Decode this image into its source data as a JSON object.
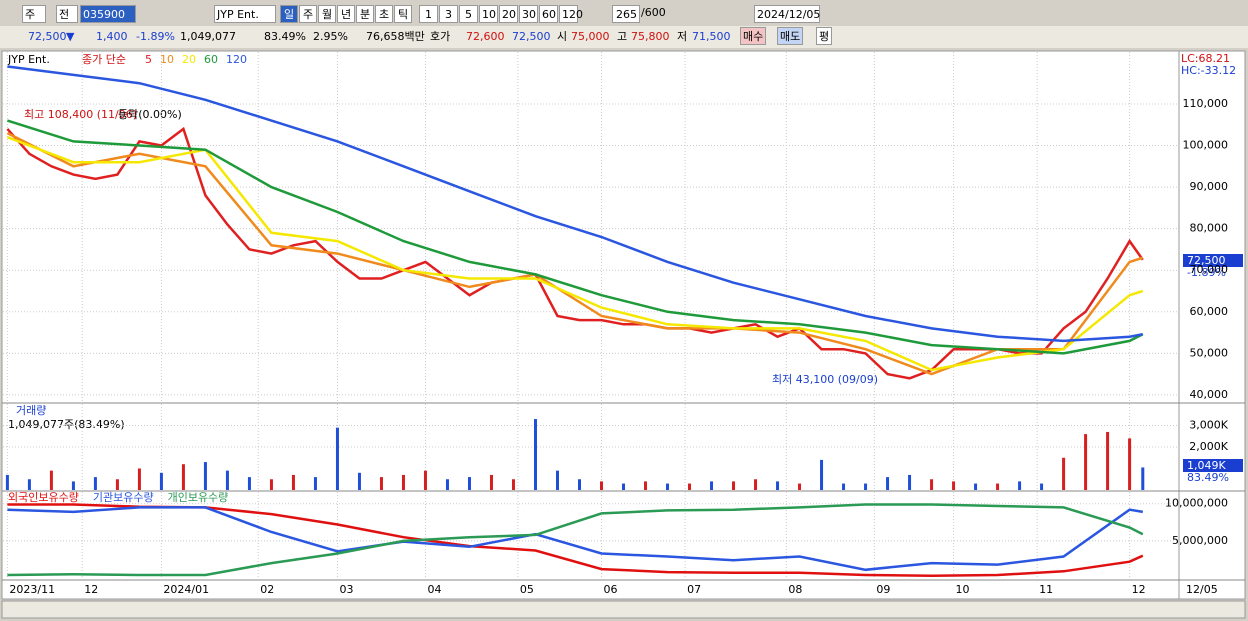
{
  "toolbar": {
    "market": "주",
    "prev": "전",
    "code": "035900",
    "name": "JYP Ent.",
    "periods": [
      "일",
      "주",
      "월",
      "년",
      "분",
      "초",
      "틱"
    ],
    "intervals": [
      "1",
      "3",
      "5",
      "10",
      "20",
      "30",
      "60",
      "120"
    ],
    "count": "265",
    "max": "/600",
    "date": "2024/12/05"
  },
  "quote": {
    "price": "72,500",
    "arrow": "▼",
    "change": "1,400",
    "rate": "-1.89%",
    "volume": "1,049,077",
    "volume_ratio": "83.49%",
    "turnover": "2.95%",
    "amount": "76,658백만",
    "bid_label": "호가",
    "ask": "72,600",
    "bid": "72,500",
    "open_label": "시",
    "open": "75,000",
    "high_label": "고",
    "high": "75,800",
    "low_label": "저",
    "low": "71,500",
    "buy": "매수",
    "sell": "매도",
    "avg": "평"
  },
  "chart_data": [
    {
      "type": "line",
      "name": "JYP Ent.",
      "subtitle": "종가 단순",
      "lc": "LC:68.21",
      "hc": "HC:-33.12",
      "last_label": "72,500",
      "last_rate": "-1.89%",
      "annotations": [
        "최고 108,400 (11/06)",
        "등락(0.00%)",
        "최저 43,100 (09/09)"
      ],
      "ylim": [
        38300,
        122500
      ],
      "yticks": [
        {
          "value": 40000,
          "label": "40,000"
        },
        {
          "value": 50000,
          "label": "50,000"
        },
        {
          "value": 60000,
          "label": "60,000"
        },
        {
          "value": 70000,
          "label": "70,000"
        },
        {
          "value": 80000,
          "label": "80,000"
        },
        {
          "value": 90000,
          "label": "90,000"
        },
        {
          "value": 100000,
          "label": "100,000"
        },
        {
          "value": 110000,
          "label": "110,000"
        }
      ],
      "series": [
        {
          "name": "5",
          "color": "#e02020",
          "x": [
            0,
            5,
            10,
            15,
            20,
            25,
            30,
            35,
            40,
            45,
            50,
            55,
            60,
            65,
            70,
            75,
            80,
            85,
            90,
            95,
            100,
            105,
            110,
            115,
            120,
            125,
            130,
            135,
            140,
            145,
            150,
            155,
            160,
            165,
            170,
            175,
            180,
            185,
            190,
            195,
            200,
            205,
            210,
            215,
            220,
            225,
            230,
            235,
            240,
            245,
            250,
            255,
            258
          ],
          "values": [
            104000,
            98000,
            95000,
            93000,
            92000,
            93000,
            101000,
            100000,
            104000,
            88000,
            81000,
            75000,
            74000,
            76000,
            77000,
            72000,
            68000,
            68000,
            70000,
            72000,
            68000,
            64000,
            67000,
            68000,
            69000,
            59000,
            58000,
            58000,
            57000,
            57000,
            56000,
            56000,
            55000,
            56000,
            57000,
            54000,
            56000,
            51000,
            51000,
            50000,
            45000,
            44000,
            46000,
            51000,
            51000,
            51000,
            50000,
            50000,
            56000,
            60000,
            68000,
            77000,
            72500
          ]
        },
        {
          "name": "10",
          "color": "#f08a1c",
          "x": [
            0,
            15,
            30,
            45,
            60,
            75,
            90,
            105,
            120,
            135,
            150,
            165,
            180,
            195,
            210,
            225,
            240,
            255,
            258
          ],
          "values": [
            103000,
            95000,
            98000,
            95000,
            76000,
            74000,
            70000,
            66000,
            69000,
            59000,
            56000,
            56000,
            55000,
            51000,
            45000,
            51000,
            51000,
            72000,
            73000
          ]
        },
        {
          "name": "20",
          "color": "#f5e800",
          "x": [
            0,
            15,
            30,
            45,
            60,
            75,
            90,
            105,
            120,
            135,
            150,
            165,
            180,
            195,
            210,
            225,
            240,
            255,
            258
          ],
          "values": [
            102000,
            96000,
            96000,
            99000,
            79000,
            77000,
            70000,
            68000,
            68000,
            61000,
            57000,
            56000,
            56000,
            53000,
            46000,
            49000,
            51000,
            64000,
            65000
          ]
        },
        {
          "name": "60",
          "color": "#1f9a3a",
          "x": [
            0,
            15,
            30,
            45,
            60,
            75,
            90,
            105,
            120,
            135,
            150,
            165,
            180,
            195,
            210,
            225,
            240,
            255,
            258
          ],
          "values": [
            106000,
            101000,
            100000,
            99000,
            90000,
            84000,
            77000,
            72000,
            69000,
            64000,
            60000,
            58000,
            57000,
            55000,
            52000,
            51000,
            50000,
            53000,
            54600
          ]
        },
        {
          "name": "120",
          "color": "#2a56e0",
          "x": [
            0,
            15,
            30,
            45,
            60,
            75,
            90,
            105,
            120,
            135,
            150,
            165,
            180,
            195,
            210,
            225,
            240,
            255,
            258
          ],
          "values": [
            119000,
            117000,
            115000,
            111000,
            106000,
            101000,
            95000,
            89000,
            83000,
            78000,
            72000,
            67000,
            63000,
            59000,
            56000,
            54000,
            53000,
            54000,
            54600
          ]
        }
      ]
    },
    {
      "type": "bar",
      "title": "거래량",
      "info": "1,049,077주(83.49%)",
      "last_label": "1,049K",
      "last_rate": "83.49%",
      "ylim": [
        0,
        4000000
      ],
      "yticks": [
        {
          "value": 2000000,
          "label": "2,000K"
        },
        {
          "value": 3000000,
          "label": "3,000K"
        }
      ],
      "x": [
        0,
        5,
        10,
        15,
        20,
        25,
        30,
        35,
        40,
        45,
        50,
        55,
        60,
        65,
        70,
        75,
        80,
        85,
        90,
        95,
        100,
        105,
        110,
        115,
        120,
        125,
        130,
        135,
        140,
        145,
        150,
        155,
        160,
        165,
        170,
        175,
        180,
        185,
        190,
        195,
        200,
        205,
        210,
        215,
        220,
        225,
        230,
        235,
        240,
        245,
        250,
        255,
        258
      ],
      "values": [
        700000,
        500000,
        900000,
        400000,
        600000,
        500000,
        1000000,
        800000,
        1200000,
        1300000,
        900000,
        600000,
        500000,
        700000,
        600000,
        2900000,
        800000,
        600000,
        700000,
        900000,
        500000,
        600000,
        700000,
        500000,
        3300000,
        900000,
        500000,
        400000,
        300000,
        400000,
        300000,
        300000,
        400000,
        400000,
        500000,
        400000,
        300000,
        1400000,
        300000,
        300000,
        600000,
        700000,
        500000,
        400000,
        300000,
        300000,
        400000,
        300000,
        1500000,
        2600000,
        2700000,
        2400000,
        1049077
      ],
      "colors": [
        "#1f4fd8",
        "#1f4fd8",
        "#d62020",
        "#1f4fd8",
        "#1f4fd8",
        "#d62020",
        "#d62020",
        "#1f4fd8",
        "#d62020",
        "#1f4fd8",
        "#1f4fd8",
        "#1f4fd8",
        "#d62020",
        "#d62020",
        "#1f4fd8",
        "#1f4fd8",
        "#1f4fd8",
        "#d62020",
        "#d62020",
        "#d62020",
        "#1f4fd8",
        "#1f4fd8",
        "#d62020",
        "#d62020",
        "#1f4fd8",
        "#1f4fd8",
        "#1f4fd8",
        "#d62020",
        "#1f4fd8",
        "#d62020",
        "#1f4fd8",
        "#d62020",
        "#1f4fd8",
        "#d62020",
        "#d62020",
        "#1f4fd8",
        "#d62020",
        "#1f4fd8",
        "#1f4fd8",
        "#1f4fd8",
        "#1f4fd8",
        "#1f4fd8",
        "#d62020",
        "#d62020",
        "#1f4fd8",
        "#d62020",
        "#1f4fd8",
        "#1f4fd8",
        "#d62020",
        "#d62020",
        "#d62020",
        "#d62020",
        "#1f4fd8"
      ]
    },
    {
      "type": "line",
      "ylim": [
        0,
        11580000
      ],
      "yticks": [
        {
          "value": 5000000,
          "label": "5,000,000"
        },
        {
          "value": 10000000,
          "label": "10,000,000"
        }
      ],
      "xlim": [
        -1,
        266
      ],
      "xticks": [
        {
          "value": 0,
          "label": "2023/11"
        },
        {
          "value": 17,
          "label": "12"
        },
        {
          "value": 35,
          "label": "2024/01"
        },
        {
          "value": 57,
          "label": "02"
        },
        {
          "value": 75,
          "label": "03"
        },
        {
          "value": 95,
          "label": "04"
        },
        {
          "value": 116,
          "label": "05"
        },
        {
          "value": 135,
          "label": "06"
        },
        {
          "value": 154,
          "label": "07"
        },
        {
          "value": 177,
          "label": "08"
        },
        {
          "value": 197,
          "label": "09"
        },
        {
          "value": 215,
          "label": "10"
        },
        {
          "value": 234,
          "label": "11"
        },
        {
          "value": 255,
          "label": "12"
        }
      ],
      "x_end_label": "12/05",
      "series": [
        {
          "name": "외국인보유수량",
          "color": "#e01010",
          "x": [
            0,
            15,
            30,
            45,
            60,
            75,
            90,
            105,
            120,
            135,
            150,
            165,
            180,
            195,
            210,
            225,
            240,
            255,
            258
          ],
          "values": [
            9900000,
            9900000,
            9600000,
            9500000,
            8600000,
            7200000,
            5500000,
            4300000,
            3700000,
            1200000,
            800000,
            700000,
            700000,
            400000,
            300000,
            400000,
            900000,
            2200000,
            3000000
          ]
        },
        {
          "name": "기관보유수량",
          "color": "#2a56e0",
          "x": [
            0,
            15,
            30,
            45,
            60,
            75,
            90,
            105,
            120,
            135,
            150,
            165,
            180,
            195,
            210,
            225,
            240,
            255,
            258
          ],
          "values": [
            9200000,
            8900000,
            9500000,
            9500000,
            6200000,
            3600000,
            4900000,
            4200000,
            5900000,
            3300000,
            2900000,
            2400000,
            2900000,
            1100000,
            2000000,
            1800000,
            2900000,
            9200000,
            8900000
          ]
        },
        {
          "name": "개인보유수량",
          "color": "#2a9a55",
          "x": [
            0,
            15,
            30,
            45,
            60,
            75,
            90,
            105,
            120,
            135,
            150,
            165,
            180,
            195,
            210,
            225,
            240,
            255,
            258
          ],
          "values": [
            400000,
            500000,
            400000,
            400000,
            2000000,
            3300000,
            5000000,
            5500000,
            5800000,
            8700000,
            9100000,
            9200000,
            9500000,
            9900000,
            9900000,
            9700000,
            9500000,
            6800000,
            5900000
          ]
        }
      ]
    }
  ]
}
